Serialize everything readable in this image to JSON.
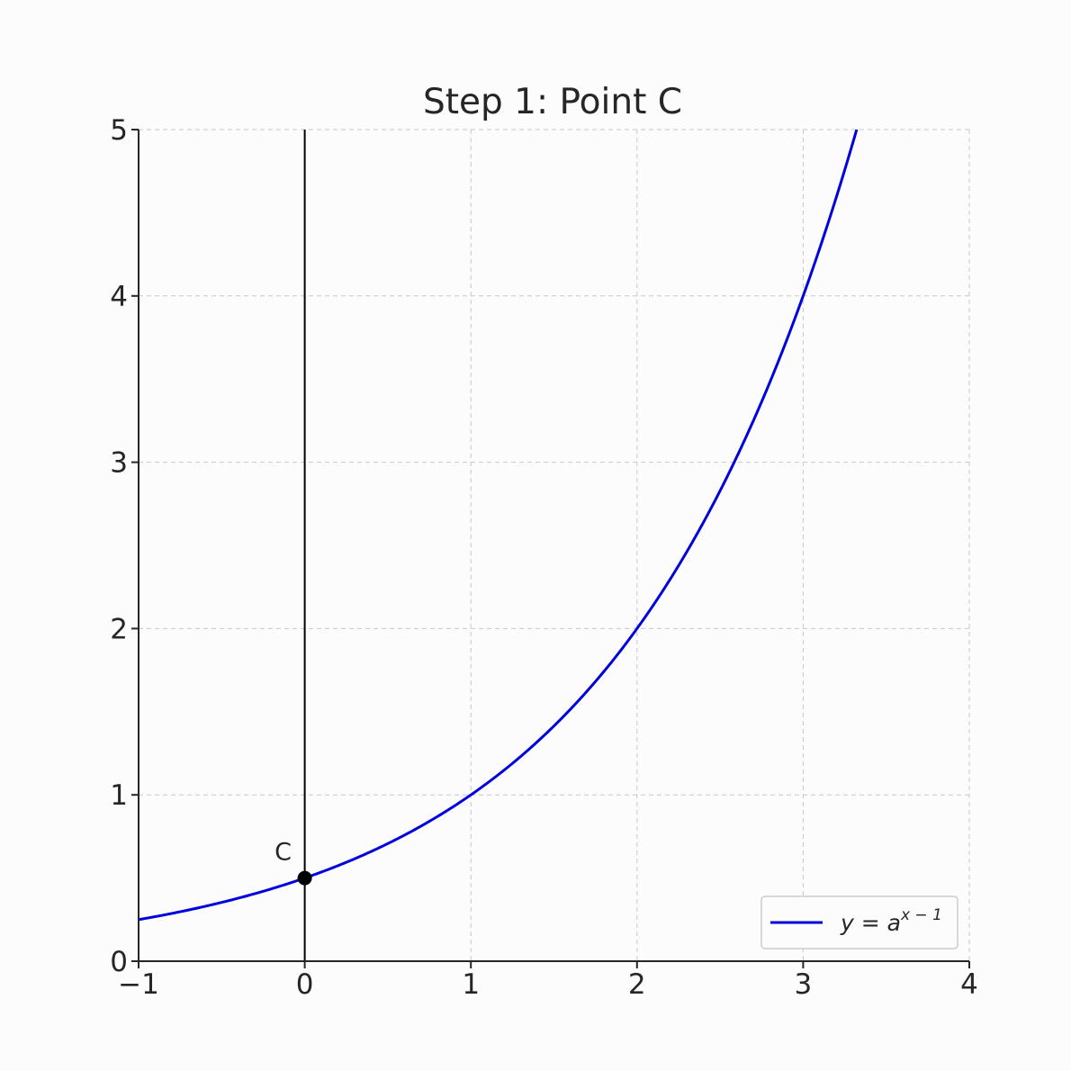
{
  "chart_data": {
    "type": "line",
    "title": "Step 1: Point C",
    "xlabel": "",
    "ylabel": "",
    "xlim": [
      -1,
      4
    ],
    "ylim": [
      0,
      5
    ],
    "xticks": [
      -1,
      0,
      1,
      2,
      3,
      4
    ],
    "xtick_labels": [
      "−1",
      "0",
      "1",
      "2",
      "3",
      "4"
    ],
    "yticks": [
      0,
      1,
      2,
      3,
      4,
      5
    ],
    "ytick_labels": [
      "0",
      "1",
      "2",
      "3",
      "4",
      "5"
    ],
    "grid": true,
    "series": [
      {
        "name": "y = a^(x − 1)",
        "function": "2^(x-1)",
        "base": 2,
        "color": "#0000dd"
      }
    ],
    "vertical_line": {
      "x": 0,
      "color": "#000000"
    },
    "points": [
      {
        "label": "C",
        "x": 0,
        "y": 0.5,
        "color": "#000000"
      }
    ],
    "legend": {
      "position": "lower-right",
      "entries": [
        {
          "base": "y = a",
          "superscript": "x − 1"
        }
      ]
    }
  }
}
